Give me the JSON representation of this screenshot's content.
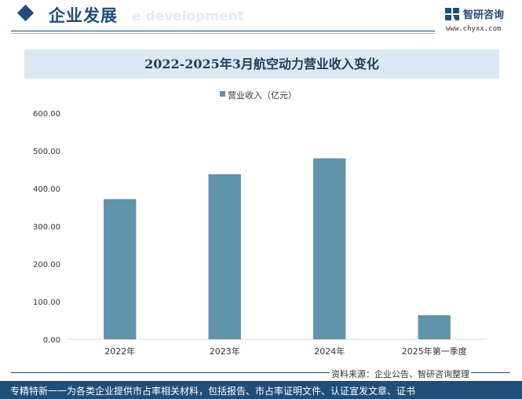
{
  "header": {
    "title": "企业发展",
    "subtitle": "e development"
  },
  "brand": {
    "name": "智研咨询",
    "url": "www.chyxx.com",
    "logo_icon": "zhiyan-logo-icon"
  },
  "chart_data": {
    "type": "bar",
    "title": "2022-2025年3月航空动力营业收入变化",
    "categories": [
      "2022年",
      "2023年",
      "2024年",
      "2025年第一季度"
    ],
    "series": [
      {
        "name": "营业收入（亿元）",
        "values": [
          372,
          438,
          480,
          64
        ],
        "color": "#5f94aa"
      }
    ],
    "yticks": [
      "0.00",
      "100.00",
      "200.00",
      "300.00",
      "400.00",
      "500.00",
      "600.00"
    ],
    "ylim": [
      0,
      600
    ],
    "grid": false,
    "legend": "top-center"
  },
  "footer": {
    "source": "资料来源：企业公告、智研咨询整理",
    "slogan": "专精特新一一为各类企业提供市占率相关材料，包括报告、市占率证明文件、认证宣发文章、证书"
  },
  "colors": {
    "brand": "#1f4e79",
    "bar": "#5f94aa",
    "title_band": "#dce8f3"
  }
}
